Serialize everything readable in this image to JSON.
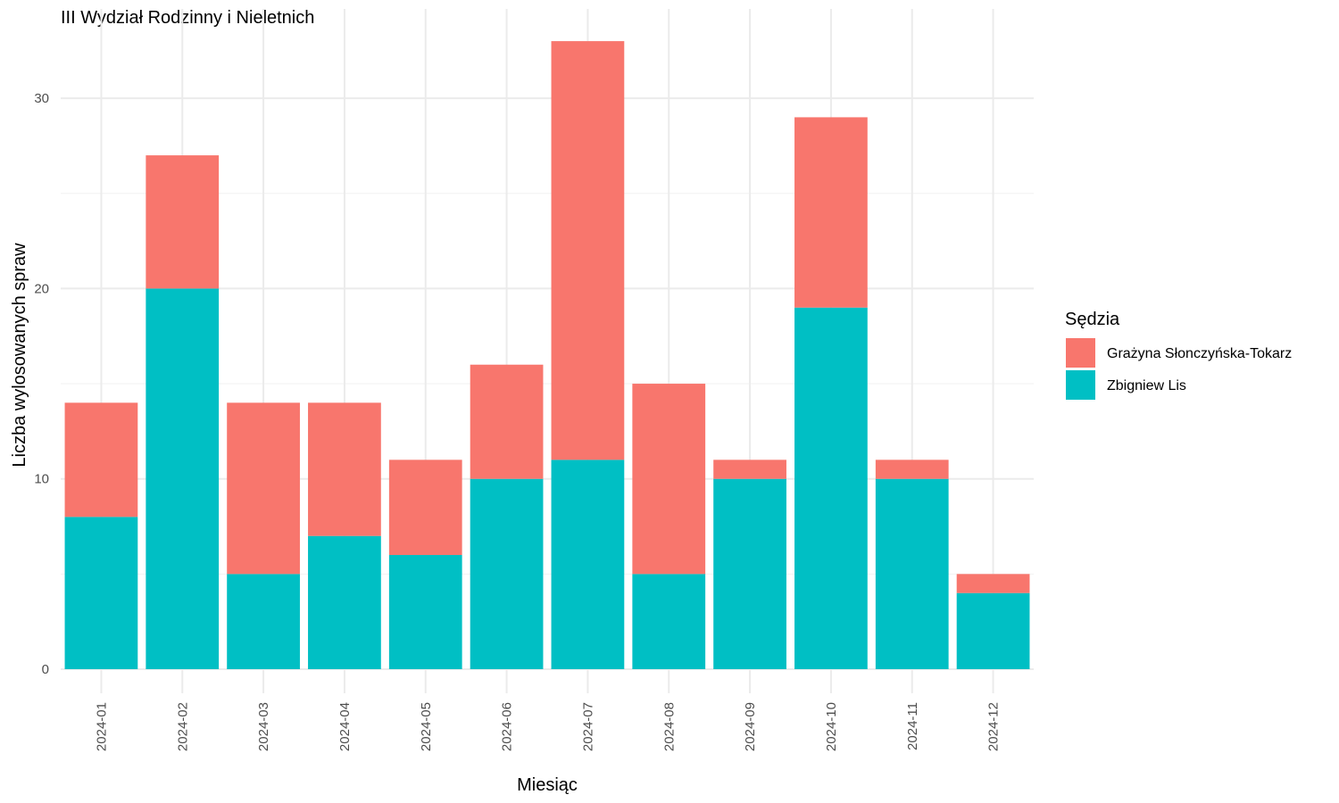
{
  "chart_data": {
    "type": "bar",
    "stacked": true,
    "title": "III Wydział Rodzinny i Nieletnich",
    "xlabel": "Miesiąc",
    "ylabel": "Liczba wylosowanych spraw",
    "categories": [
      "2024-01",
      "2024-02",
      "2024-03",
      "2024-04",
      "2024-05",
      "2024-06",
      "2024-07",
      "2024-08",
      "2024-09",
      "2024-10",
      "2024-11",
      "2024-12"
    ],
    "series": [
      {
        "name": "Zbigniew Lis",
        "color": "#00BFC4",
        "values": [
          8,
          20,
          5,
          7,
          6,
          10,
          11,
          5,
          10,
          19,
          10,
          4
        ]
      },
      {
        "name": "Grażyna Słonczyńska-Tokarz",
        "color": "#F8766D",
        "values": [
          6,
          7,
          9,
          7,
          5,
          6,
          22,
          10,
          1,
          10,
          1,
          1
        ]
      }
    ],
    "ylim": [
      0,
      33
    ],
    "yticks": [
      0,
      10,
      20,
      30
    ],
    "grid": true,
    "legend": {
      "title": "Sędzia",
      "position": "right",
      "order": [
        "Grażyna Słonczyńska-Tokarz",
        "Zbigniew Lis"
      ]
    }
  }
}
